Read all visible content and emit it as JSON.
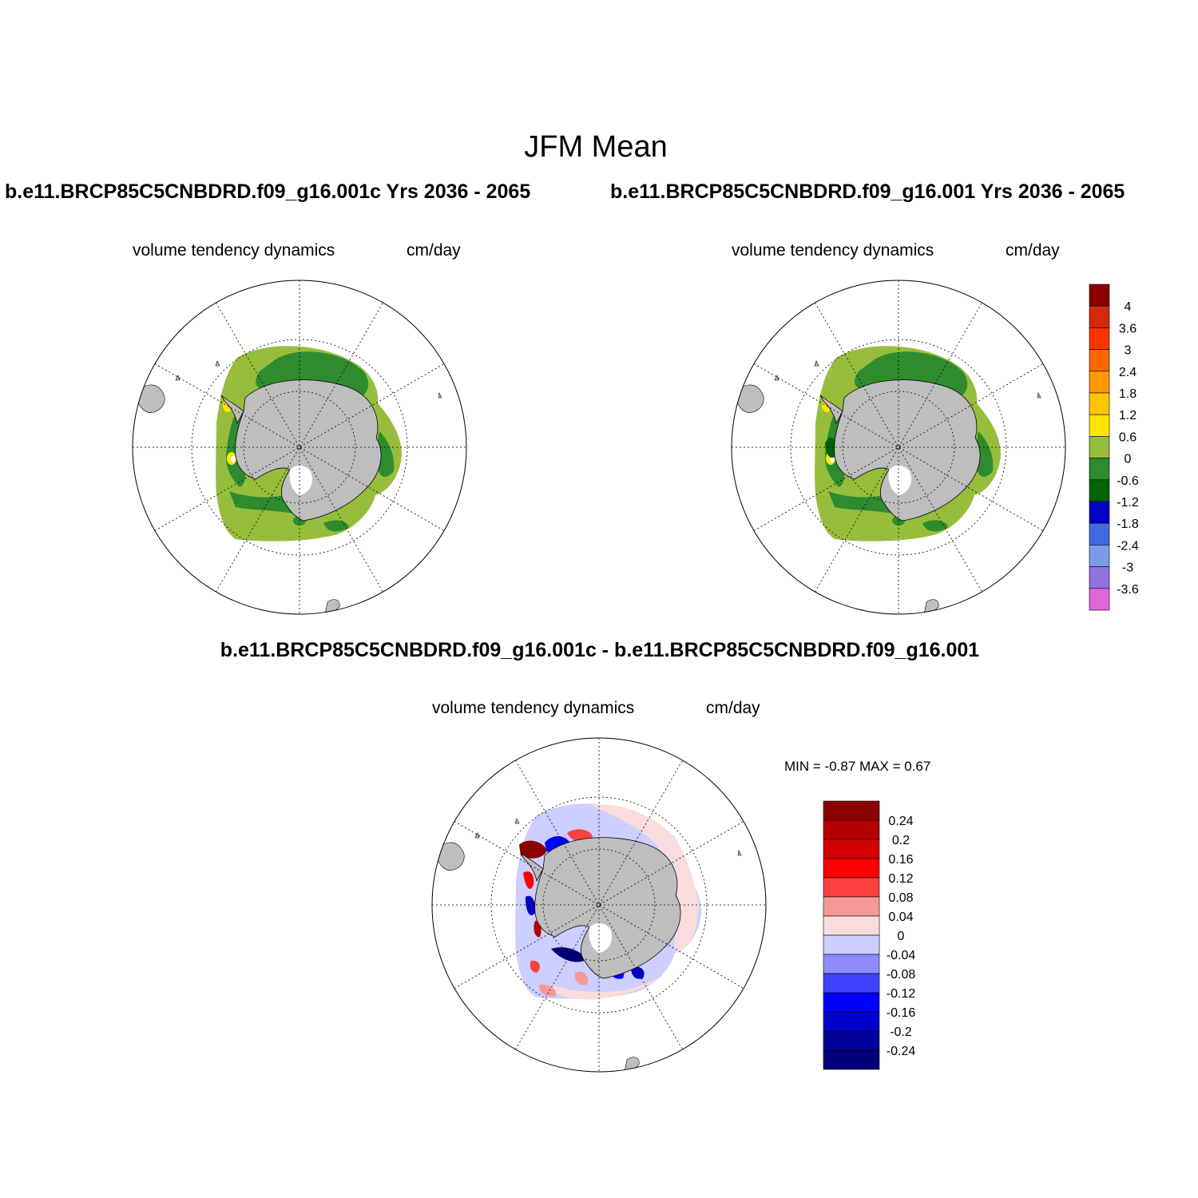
{
  "figure": {
    "title": "JFM Mean",
    "panels": [
      {
        "title": "b.e11.BRCP85C5CNBDRD.f09_g16.001c  Yrs 2036 - 2065",
        "variable": "volume tendency dynamics",
        "units": "cm/day"
      },
      {
        "title": "b.e11.BRCP85C5CNBDRD.f09_g16.001  Yrs 2036 - 2065",
        "variable": "volume tendency dynamics",
        "units": "cm/day"
      },
      {
        "title": "b.e11.BRCP85C5CNBDRD.f09_g16.001c - b.e11.BRCP85C5CNBDRD.f09_g16.001",
        "variable": "volume tendency dynamics",
        "units": "cm/day",
        "min_max_text": "MIN =  -0.87 MAX =   0.67"
      }
    ],
    "colorbars": [
      {
        "labels": [
          "4",
          "3.6",
          "3",
          "2.4",
          "1.8",
          "1.2",
          "0.6",
          "0",
          "-0.6",
          "-1.2",
          "-1.8",
          "-2.4",
          "-3",
          "-3.6"
        ],
        "colors": [
          "#8b0000",
          "#d42a0c",
          "#ff3300",
          "#ff6600",
          "#ff9900",
          "#ffc400",
          "#ffe600",
          "#96be3c",
          "#2e8b2e",
          "#006400",
          "#0000c8",
          "#4169e1",
          "#7b9be8",
          "#9370db",
          "#e066d8"
        ]
      },
      {
        "labels": [
          "0.24",
          "0.2",
          "0.16",
          "0.12",
          "0.08",
          "0.04",
          "0",
          "-0.04",
          "-0.08",
          "-0.12",
          "-0.16",
          "-0.2",
          "-0.24"
        ],
        "colors": [
          "#8b0000",
          "#b40000",
          "#d20000",
          "#ff0000",
          "#ff4040",
          "#f79898",
          "#fadcdc",
          "#cccfff",
          "#8c8cff",
          "#4040ff",
          "#0000ff",
          "#0000c8",
          "#00009a",
          "#000078"
        ]
      }
    ],
    "palette": {
      "land": "#bebebe",
      "ice_green": "#96be3c",
      "ice_dark_green": "#2e8b2e",
      "ice_yellow": "#ffe600",
      "diff_light_red": "#fadcdc",
      "diff_light_blue": "#cccfff",
      "diff_red": "#ff0000",
      "diff_blue": "#0000ff"
    }
  }
}
